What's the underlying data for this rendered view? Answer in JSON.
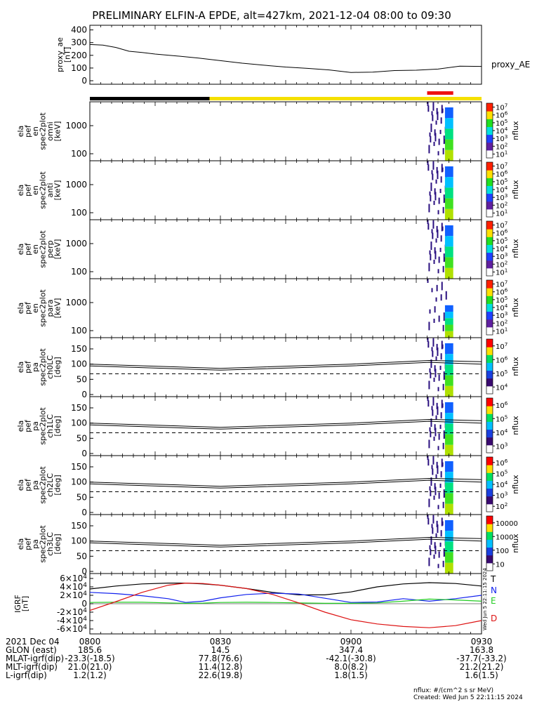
{
  "title": "PRELIMINARY ELFIN-A EPDE, alt=427km, 2021-12-04 08:00 to 09:30",
  "colors": {
    "black": "#000000",
    "yellow": "#f5e000",
    "red_bar": "#ee1111",
    "grf_T": "#000000",
    "grf_N": "#1020ee",
    "grf_E": "#22cc22",
    "grf_D": "#dd1111",
    "spec_dark": "#2a1080"
  },
  "chart_data": [
    {
      "type": "line",
      "panel": "proxy_ae",
      "ylabel": [
        "proxy_ae",
        "[nT]"
      ],
      "yticks": [
        0,
        100,
        200,
        300,
        400
      ],
      "ylim": [
        0,
        420
      ],
      "right_label": "proxy_AE",
      "x_minutes": [
        0,
        3,
        6,
        9,
        12,
        15,
        20,
        25,
        30,
        35,
        40,
        45,
        50,
        55,
        60,
        65,
        70,
        75,
        80,
        85,
        90
      ],
      "values": [
        285,
        280,
        262,
        232,
        222,
        210,
        195,
        178,
        158,
        138,
        122,
        108,
        97,
        85,
        65,
        68,
        80,
        83,
        92,
        115,
        113
      ]
    },
    {
      "type": "ephemeris_bar",
      "segments": [
        {
          "start_min": 0,
          "end_min": 27.5,
          "color": "black"
        },
        {
          "start_min": 27.5,
          "end_min": 90,
          "color": "yellow"
        }
      ],
      "marker": {
        "start_min": 77.5,
        "end_min": 83.5,
        "color": "red_bar"
      }
    },
    {
      "type": "heatmap",
      "ylabel": [
        "ela",
        "pef",
        "en",
        "spec2plot",
        "omni",
        "[keV]"
      ],
      "yticks": [
        "100",
        "1000"
      ],
      "ylog": true,
      "colorbar_label": "nflux",
      "colorbar_ticks": [
        "10^1",
        "10^2",
        "10^3",
        "10^4",
        "10^5",
        "10^6",
        "10^7"
      ]
    },
    {
      "type": "heatmap",
      "ylabel": [
        "ela",
        "pef",
        "en",
        "spec2plot",
        "anti",
        "[keV]"
      ],
      "yticks": [
        "100",
        "1000"
      ],
      "ylog": true,
      "colorbar_label": "nflux",
      "colorbar_ticks": [
        "10^1",
        "10^2",
        "10^3",
        "10^4",
        "10^5",
        "10^6",
        "10^7"
      ]
    },
    {
      "type": "heatmap",
      "ylabel": [
        "ela",
        "pef",
        "en",
        "spec2plot",
        "perp",
        "[keV]"
      ],
      "yticks": [
        "100",
        "1000"
      ],
      "ylog": true,
      "colorbar_label": "nflux",
      "colorbar_ticks": [
        "10^1",
        "10^2",
        "10^3",
        "10^4",
        "10^5",
        "10^6",
        "10^7"
      ]
    },
    {
      "type": "heatmap",
      "ylabel": [
        "ela",
        "pef",
        "en",
        "spec2plot",
        "para",
        "[keV]"
      ],
      "yticks": [
        "100",
        "1000"
      ],
      "ylog": true,
      "colorbar_label": "nflux",
      "colorbar_ticks": [
        "10^1",
        "10^2",
        "10^3",
        "10^4",
        "10^5",
        "10^6",
        "10^7"
      ]
    },
    {
      "type": "heatmap",
      "ylabel": [
        "ela",
        "pef",
        "pa",
        "spec2plot",
        "ch0LC",
        "[deg]"
      ],
      "yticks": [
        "0",
        "50",
        "100",
        "150"
      ],
      "colorbar_label": "nflux",
      "colorbar_ticks": [
        "10^4",
        "10^5",
        "10^6",
        "10^7"
      ]
    },
    {
      "type": "heatmap",
      "ylabel": [
        "ela",
        "pef",
        "pa",
        "spec2plot",
        "ch1LC",
        "[deg]"
      ],
      "yticks": [
        "0",
        "50",
        "100",
        "150"
      ],
      "colorbar_label": "nflux",
      "colorbar_ticks": [
        "10^3",
        "10^4",
        "10^5",
        "10^6"
      ]
    },
    {
      "type": "heatmap",
      "ylabel": [
        "ela",
        "pef",
        "pa",
        "spec2plot",
        "ch2LC",
        "[deg]"
      ],
      "yticks": [
        "0",
        "50",
        "100",
        "150"
      ],
      "colorbar_label": "nflux",
      "colorbar_ticks": [
        "10^2",
        "10^3",
        "10^4",
        "10^5",
        "10^6"
      ]
    },
    {
      "type": "heatmap",
      "ylabel": [
        "ela",
        "pef",
        "pa",
        "spec2plot",
        "ch3LC",
        "[deg]"
      ],
      "yticks": [
        "0",
        "50",
        "100",
        "150"
      ],
      "colorbar_label": "nflux",
      "colorbar_ticks": [
        "10",
        "100",
        "1000",
        "10000"
      ]
    },
    {
      "type": "line",
      "panel": "igrf",
      "ylabel": [
        "IGRF",
        "[nT]"
      ],
      "yticks": [
        "-6×10^4",
        "-4×10^4",
        "-2×10^4",
        "0",
        "2×10^4",
        "4×10^4",
        "6×10^4"
      ],
      "ylim": [
        -65000,
        65000
      ],
      "legend": [
        "T",
        "N",
        "E",
        "D"
      ],
      "x_minutes": [
        0,
        6,
        12,
        18,
        22,
        26,
        30,
        36,
        42,
        48,
        54,
        60,
        66,
        72,
        78,
        84,
        90
      ],
      "series": [
        {
          "name": "T",
          "values": [
            35000,
            42000,
            47000,
            49000,
            49000,
            47000,
            44000,
            36000,
            27000,
            21000,
            21000,
            28000,
            40000,
            47000,
            50000,
            48000,
            42000
          ]
        },
        {
          "name": "N",
          "values": [
            27000,
            24000,
            19000,
            12000,
            3000,
            6000,
            14000,
            22000,
            25000,
            23000,
            13000,
            3000,
            4000,
            12000,
            6000,
            12000,
            20000
          ]
        },
        {
          "name": "E",
          "values": [
            3000,
            3500,
            3500,
            2000,
            1000,
            1500,
            3000,
            3500,
            3000,
            2000,
            1000,
            1000,
            2000,
            6000,
            11000,
            9000,
            6000
          ]
        },
        {
          "name": "D",
          "values": [
            -16000,
            5000,
            27000,
            44000,
            49000,
            48000,
            44000,
            36000,
            22000,
            2000,
            -20000,
            -38000,
            -48000,
            -54000,
            -57000,
            -52000,
            -40000
          ]
        }
      ]
    }
  ],
  "footer": {
    "rows": [
      {
        "label": "2021 Dec 04",
        "values": [
          "0800",
          "0830",
          "0900",
          "0930"
        ]
      },
      {
        "label": "GLON (east)",
        "values": [
          "185.6",
          "14.5",
          "347.4",
          "163.8"
        ]
      },
      {
        "label": "MLAT-igrf(dip)",
        "values": [
          "-23.3(-18.5)",
          "77.8(76.6)",
          "-42.1(-30.8)",
          "-37.7(-33.2)"
        ]
      },
      {
        "label": "MLT-igrf(dip)",
        "values": [
          "21.0(21.0)",
          "11.4(12.8)",
          "8.0(8.2)",
          "21.2(21.2)"
        ]
      },
      {
        "label": "L-igrf(dip)",
        "values": [
          "1.2(1.2)",
          "22.6(19.8)",
          "1.8(1.5)",
          "1.6(1.5)"
        ]
      }
    ],
    "units_note": "nflux: #/(cm^2 s sr MeV)",
    "created": "Created: Wed Jun  5 22:11:15 2024",
    "side_stamp": "Wed Jun  5 22:11:15 2024"
  }
}
